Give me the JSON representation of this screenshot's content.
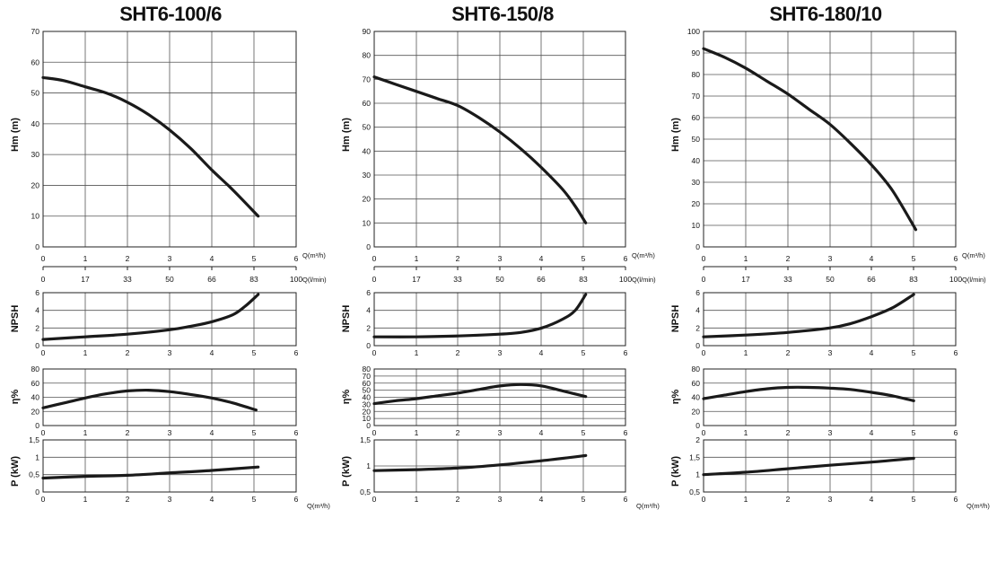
{
  "chart_data": [
    {
      "title": "SHT6-100/6",
      "x_unit_label": "Q(m³/h)",
      "x2_unit_label": "Q(l/min)",
      "x_ticks": [
        "0",
        "1",
        "2",
        "3",
        "4",
        "5",
        "6"
      ],
      "x2_ticks": [
        "0",
        "17",
        "33",
        "50",
        "66",
        "83",
        "100"
      ],
      "panels": [
        {
          "key": "hm",
          "type": "line",
          "ylabel": "Hm   (m)",
          "ylim": [
            0,
            70
          ],
          "yticks": [
            "0",
            "10",
            "20",
            "30",
            "40",
            "50",
            "60",
            "70"
          ],
          "series": [
            {
              "name": "Hm",
              "x": [
                0,
                0.5,
                1,
                1.5,
                2,
                2.5,
                3,
                3.5,
                4,
                4.5,
                5.1
              ],
              "y": [
                55,
                54,
                52,
                50,
                47,
                43,
                38,
                32,
                25,
                18.5,
                10
              ]
            }
          ]
        },
        {
          "key": "npsh",
          "type": "line",
          "ylabel": "NPSH",
          "ylim": [
            0,
            6
          ],
          "yticks": [
            "0",
            "2",
            "4",
            "6"
          ],
          "series": [
            {
              "name": "NPSH",
              "x": [
                0,
                1,
                2,
                3,
                3.5,
                4,
                4.5,
                4.8,
                5.1
              ],
              "y": [
                0.7,
                1,
                1.3,
                1.8,
                2.2,
                2.7,
                3.5,
                4.5,
                5.8
              ]
            }
          ]
        },
        {
          "key": "eff",
          "type": "line",
          "ylabel": "η%",
          "ylim": [
            0,
            80
          ],
          "yticks": [
            "0",
            "20",
            "40",
            "60",
            "80"
          ],
          "series": [
            {
              "name": "η",
              "x": [
                0,
                0.5,
                1,
                1.5,
                2,
                2.5,
                3,
                3.5,
                4,
                4.5,
                5.05
              ],
              "y": [
                25,
                32,
                39,
                45,
                49,
                50,
                48,
                44,
                39,
                32,
                22
              ]
            }
          ]
        },
        {
          "key": "p",
          "type": "line",
          "ylabel": "P    (kW)",
          "ylim": [
            0,
            1.5
          ],
          "yticks": [
            "0",
            "0,5",
            "1",
            "1,5"
          ],
          "series": [
            {
              "name": "P",
              "x": [
                0,
                1,
                2,
                3,
                4,
                5.1
              ],
              "y": [
                0.4,
                0.45,
                0.48,
                0.55,
                0.62,
                0.72
              ]
            }
          ]
        }
      ]
    },
    {
      "title": "SHT6-150/8",
      "x_unit_label": "Q(m³/h)",
      "x2_unit_label": "Q(l/min)",
      "x_ticks": [
        "0",
        "1",
        "2",
        "3",
        "4",
        "5",
        "6"
      ],
      "x2_ticks": [
        "0",
        "17",
        "33",
        "50",
        "66",
        "83",
        "100"
      ],
      "panels": [
        {
          "key": "hm",
          "type": "line",
          "ylabel": "Hm   (m)",
          "ylim": [
            0,
            90
          ],
          "yticks": [
            "0",
            "10",
            "20",
            "30",
            "40",
            "50",
            "60",
            "70",
            "80",
            "90"
          ],
          "series": [
            {
              "name": "Hm",
              "x": [
                0,
                0.5,
                1,
                1.5,
                2,
                2.5,
                3,
                3.5,
                4,
                4.5,
                4.8,
                5.05
              ],
              "y": [
                71,
                68,
                65,
                62,
                59,
                54,
                48,
                41,
                33,
                24,
                17,
                10
              ]
            }
          ]
        },
        {
          "key": "npsh",
          "type": "line",
          "ylabel": "NPSH",
          "ylim": [
            0,
            6
          ],
          "yticks": [
            "0",
            "2",
            "4",
            "6"
          ],
          "series": [
            {
              "name": "NPSH",
              "x": [
                0,
                1,
                2,
                3,
                3.5,
                4,
                4.5,
                4.8,
                5.05
              ],
              "y": [
                1,
                1,
                1.1,
                1.3,
                1.5,
                2,
                3,
                4,
                5.8
              ]
            }
          ]
        },
        {
          "key": "eff",
          "type": "line",
          "ylabel": "η%",
          "ylim": [
            0,
            80
          ],
          "yticks": [
            "0",
            "10",
            "20",
            "30",
            "40",
            "50",
            "60",
            "70",
            "80"
          ],
          "series": [
            {
              "name": "η",
              "x": [
                0,
                0.5,
                1,
                1.5,
                2,
                2.5,
                3,
                3.5,
                4,
                4.5,
                5.05
              ],
              "y": [
                31,
                35,
                38,
                42,
                46,
                51,
                56,
                58,
                56,
                49,
                41
              ]
            }
          ]
        },
        {
          "key": "p",
          "type": "line",
          "ylabel": "P    (kW)",
          "ylim": [
            0.5,
            1.5
          ],
          "yticks": [
            "0,5",
            "1",
            "1,5"
          ],
          "series": [
            {
              "name": "P",
              "x": [
                0,
                1,
                2,
                3,
                4,
                5.05
              ],
              "y": [
                0.91,
                0.93,
                0.96,
                1.02,
                1.1,
                1.2
              ]
            }
          ]
        }
      ]
    },
    {
      "title": "SHT6-180/10",
      "x_unit_label": "Q(m³/h)",
      "x2_unit_label": "Q(l/min)",
      "x_ticks": [
        "0",
        "1",
        "2",
        "3",
        "4",
        "5",
        "6"
      ],
      "x2_ticks": [
        "0",
        "17",
        "33",
        "50",
        "66",
        "83",
        "100"
      ],
      "panels": [
        {
          "key": "hm",
          "type": "line",
          "ylabel": "Hm   (m)",
          "ylim": [
            0,
            100
          ],
          "yticks": [
            "0",
            "10",
            "20",
            "30",
            "40",
            "50",
            "60",
            "70",
            "80",
            "90",
            "100"
          ],
          "series": [
            {
              "name": "Hm",
              "x": [
                0,
                0.5,
                1,
                1.5,
                2,
                2.5,
                3,
                3.5,
                4,
                4.5,
                5.05
              ],
              "y": [
                92,
                88,
                83,
                77,
                71,
                64,
                57,
                48,
                38,
                26,
                8
              ]
            }
          ]
        },
        {
          "key": "npsh",
          "type": "line",
          "ylabel": "NPSH",
          "ylim": [
            0,
            6
          ],
          "yticks": [
            "0",
            "2",
            "4",
            "6"
          ],
          "series": [
            {
              "name": "NPSH",
              "x": [
                0,
                1,
                2,
                3,
                3.5,
                4,
                4.5,
                5
              ],
              "y": [
                1,
                1.2,
                1.5,
                2,
                2.5,
                3.3,
                4.3,
                5.8
              ]
            }
          ]
        },
        {
          "key": "eff",
          "type": "line",
          "ylabel": "η%",
          "ylim": [
            0,
            80
          ],
          "yticks": [
            "0",
            "20",
            "40",
            "60",
            "80"
          ],
          "series": [
            {
              "name": "η",
              "x": [
                0,
                0.5,
                1,
                1.5,
                2,
                2.5,
                3,
                3.5,
                4,
                4.5,
                5
              ],
              "y": [
                38,
                43,
                48,
                52,
                54,
                54,
                53,
                51,
                47,
                42,
                35
              ]
            }
          ]
        },
        {
          "key": "p",
          "type": "line",
          "ylabel": "P    (kW)",
          "ylim": [
            0.5,
            2
          ],
          "yticks": [
            "0,5",
            "1",
            "1,5",
            "2"
          ],
          "series": [
            {
              "name": "P",
              "x": [
                0,
                1,
                2,
                3,
                4,
                5
              ],
              "y": [
                1,
                1.07,
                1.17,
                1.27,
                1.36,
                1.47
              ]
            }
          ]
        }
      ]
    }
  ]
}
